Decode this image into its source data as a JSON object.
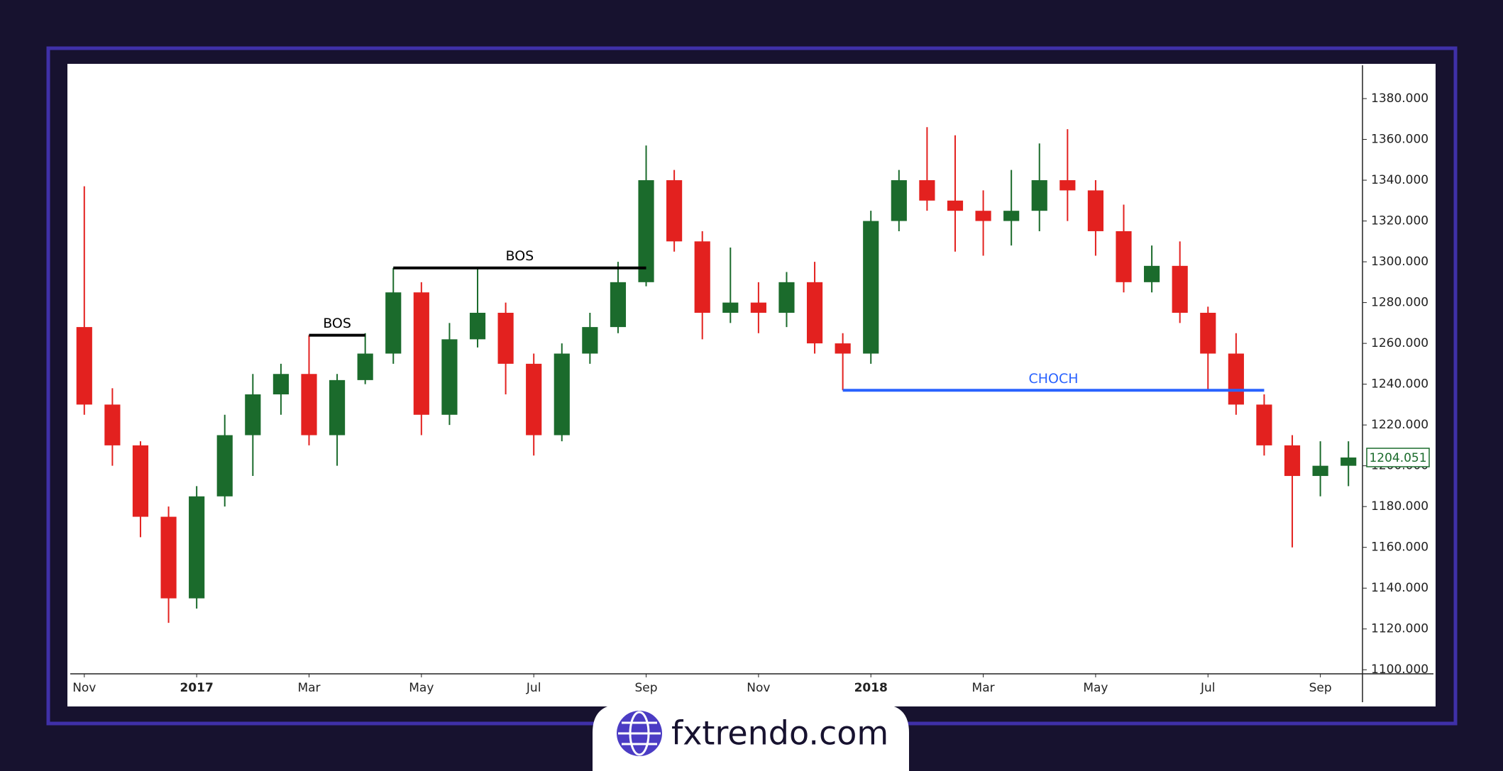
{
  "chart_data": {
    "type": "candlestick",
    "categories": [
      "Nov",
      null,
      null,
      null,
      "2017",
      null,
      null,
      null,
      "Mar",
      null,
      null,
      null,
      "May",
      null,
      null,
      null,
      "Jul",
      null,
      null,
      null,
      "Sep",
      null,
      null,
      null,
      "Nov",
      null,
      null,
      null,
      "2018",
      null,
      null,
      null,
      "Mar",
      null,
      null,
      null,
      "May",
      null,
      null,
      null,
      "Jul",
      null,
      null,
      null,
      "Sep",
      null
    ],
    "open": [
      1268,
      1230,
      1210,
      1175,
      1135,
      1185,
      1215,
      1235,
      1245,
      1215,
      1242,
      1255,
      1285,
      1225,
      1262,
      1275,
      1250,
      1215,
      1255,
      1268,
      1290,
      1340,
      1310,
      1275,
      1280,
      1275,
      1290,
      1260,
      1255,
      1320,
      1340,
      1330,
      1325,
      1320,
      1325,
      1340,
      1335,
      1315,
      1290,
      1298,
      1275,
      1255,
      1230,
      1210,
      1195,
      1200
    ],
    "high": [
      1337,
      1238,
      1212,
      1180,
      1190,
      1225,
      1245,
      1250,
      1264,
      1245,
      1265,
      1297,
      1290,
      1270,
      1297,
      1280,
      1255,
      1260,
      1275,
      1300,
      1357,
      1345,
      1315,
      1307,
      1290,
      1295,
      1300,
      1265,
      1325,
      1345,
      1366,
      1362,
      1335,
      1345,
      1358,
      1365,
      1340,
      1328,
      1308,
      1310,
      1278,
      1265,
      1235,
      1215,
      1212,
      1212
    ],
    "low": [
      1225,
      1200,
      1165,
      1123,
      1130,
      1180,
      1195,
      1225,
      1210,
      1200,
      1240,
      1250,
      1215,
      1220,
      1258,
      1235,
      1205,
      1212,
      1250,
      1265,
      1288,
      1305,
      1262,
      1270,
      1265,
      1268,
      1255,
      1237,
      1250,
      1315,
      1325,
      1305,
      1303,
      1308,
      1315,
      1320,
      1303,
      1285,
      1285,
      1270,
      1237,
      1225,
      1205,
      1160,
      1185,
      1190
    ],
    "close": [
      1230,
      1210,
      1175,
      1135,
      1185,
      1215,
      1235,
      1245,
      1215,
      1242,
      1255,
      1285,
      1225,
      1262,
      1275,
      1250,
      1215,
      1255,
      1268,
      1290,
      1340,
      1310,
      1275,
      1280,
      1275,
      1290,
      1260,
      1255,
      1320,
      1340,
      1330,
      1325,
      1320,
      1325,
      1340,
      1335,
      1315,
      1290,
      1298,
      1275,
      1255,
      1230,
      1210,
      1195,
      1200,
      1204.051
    ],
    "up_color": "#1b6b2c",
    "down_color": "#e3211f",
    "ylim": [
      1098,
      1396
    ],
    "yticks": [
      {
        "value": 1100,
        "label": "1100.000"
      },
      {
        "value": 1120,
        "label": "1120.000"
      },
      {
        "value": 1140,
        "label": "1140.000"
      },
      {
        "value": 1160,
        "label": "1160.000"
      },
      {
        "value": 1180,
        "label": "1180.000"
      },
      {
        "value": 1200,
        "label": "1200.000"
      },
      {
        "value": 1220,
        "label": "1220.000"
      },
      {
        "value": 1240,
        "label": "1240.000"
      },
      {
        "value": 1260,
        "label": "1260.000"
      },
      {
        "value": 1280,
        "label": "1280.000"
      },
      {
        "value": 1300,
        "label": "1300.000"
      },
      {
        "value": 1320,
        "label": "1320.000"
      },
      {
        "value": 1340,
        "label": "1340.000"
      },
      {
        "value": 1360,
        "label": "1360.000"
      },
      {
        "value": 1380,
        "label": "1380.000"
      }
    ],
    "annotations": [
      {
        "label": "BOS",
        "value": 1264,
        "from": 8,
        "to": 10,
        "color": "#000000"
      },
      {
        "label": "BOS",
        "value": 1297,
        "from": 11,
        "to": 20,
        "color": "#000000"
      },
      {
        "label": "CHOCH",
        "value": 1237,
        "from": 27,
        "to": 42,
        "color": "#2962ff"
      }
    ]
  },
  "brand": "fxtrendo.com"
}
